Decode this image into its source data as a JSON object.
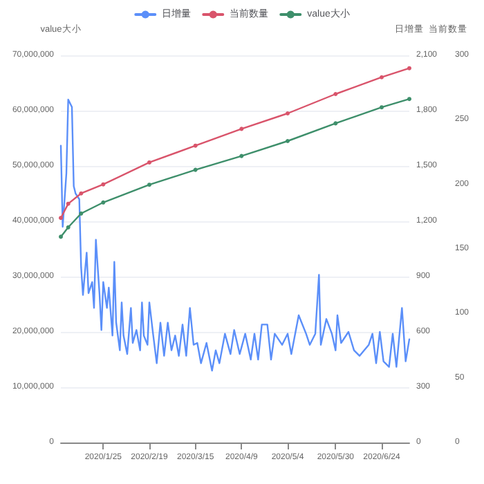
{
  "chart_data": {
    "type": "line",
    "ylabel": "value大小",
    "y2label": "日增量",
    "y3label": "当前数量",
    "xlim": [
      "2020-01-02",
      "2020-07-09"
    ],
    "xticks": [
      {
        "value": "2020-01-25",
        "label": "2020/1/25"
      },
      {
        "value": "2020-02-19",
        "label": "2020/2/19"
      },
      {
        "value": "2020-03-15",
        "label": "2020/3/15"
      },
      {
        "value": "2020-04-09",
        "label": "2020/4/9"
      },
      {
        "value": "2020-05-04",
        "label": "2020/5/4"
      },
      {
        "value": "2020-05-30",
        "label": "2020/5/30"
      },
      {
        "value": "2020-06-24",
        "label": "2020/6/24"
      }
    ],
    "ylim": [
      0,
      70000000
    ],
    "yticks": [
      0,
      {
        "value": 10000000,
        "label": "10,000,000"
      },
      {
        "value": 20000000,
        "label": "20,000,000"
      },
      {
        "value": 30000000,
        "label": "30,000,000"
      },
      {
        "value": 40000000,
        "label": "40,000,000"
      },
      {
        "value": 50000000,
        "label": "50,000,000"
      },
      {
        "value": 60000000,
        "label": "60,000,000"
      },
      {
        "value": 70000000,
        "label": "70,000,000"
      }
    ],
    "y2lim": [
      0,
      2100
    ],
    "y2ticks": [
      0,
      300,
      600,
      900,
      {
        "value": 1200,
        "label": "1,200"
      },
      {
        "value": 1500,
        "label": "1,500"
      },
      {
        "value": 1800,
        "label": "1,800"
      },
      {
        "value": 2100,
        "label": "2,100"
      }
    ],
    "y3lim": [
      0,
      300
    ],
    "y3ticks": [
      0,
      50,
      100,
      150,
      200,
      250,
      300
    ],
    "grid": "y",
    "legend": "top",
    "marker": "circle",
    "line_style": "solid",
    "series": [
      {
        "name": "日增量",
        "color": "#5b8ff9",
        "axis": "y2",
        "marker": "none",
        "x": [
          "2020-01-02",
          "2020-01-03",
          "2020-01-05",
          "2020-01-06",
          "2020-01-08",
          "2020-01-09",
          "2020-01-10",
          "2020-01-12",
          "2020-01-13",
          "2020-01-14",
          "2020-01-16",
          "2020-01-17",
          "2020-01-19",
          "2020-01-20",
          "2020-01-21",
          "2020-01-23",
          "2020-01-24",
          "2020-01-25",
          "2020-01-27",
          "2020-01-28",
          "2020-01-30",
          "2020-01-31",
          "2020-02-01",
          "2020-02-03",
          "2020-02-04",
          "2020-02-05",
          "2020-02-07",
          "2020-02-09",
          "2020-02-10",
          "2020-02-12",
          "2020-02-14",
          "2020-02-15",
          "2020-02-16",
          "2020-02-18",
          "2020-02-19",
          "2020-02-21",
          "2020-02-23",
          "2020-02-25",
          "2020-02-27",
          "2020-02-29",
          "2020-03-02",
          "2020-03-04",
          "2020-03-06",
          "2020-03-08",
          "2020-03-10",
          "2020-03-12",
          "2020-03-14",
          "2020-03-16",
          "2020-03-18",
          "2020-03-21",
          "2020-03-24",
          "2020-03-26",
          "2020-03-28",
          "2020-03-31",
          "2020-04-03",
          "2020-04-05",
          "2020-04-08",
          "2020-04-11",
          "2020-04-14",
          "2020-04-16",
          "2020-04-18",
          "2020-04-20",
          "2020-04-23",
          "2020-04-25",
          "2020-04-27",
          "2020-05-01",
          "2020-05-04",
          "2020-05-06",
          "2020-05-10",
          "2020-05-14",
          "2020-05-16",
          "2020-05-19",
          "2020-05-21",
          "2020-05-22",
          "2020-05-25",
          "2020-05-28",
          "2020-05-30",
          "2020-05-31",
          "2020-06-02",
          "2020-06-06",
          "2020-06-09",
          "2020-06-12",
          "2020-06-17",
          "2020-06-19",
          "2020-06-21",
          "2020-06-23",
          "2020-06-25",
          "2020-06-28",
          "2020-06-30",
          "2020-07-02",
          "2020-07-05",
          "2020-07-07",
          "2020-07-09"
        ],
        "values": [
          1610,
          1170,
          1460,
          1860,
          1820,
          1390,
          1350,
          1320,
          950,
          800,
          1030,
          810,
          870,
          730,
          1100,
          800,
          610,
          870,
          730,
          840,
          580,
          980,
          650,
          500,
          760,
          580,
          480,
          730,
          540,
          610,
          500,
          760,
          580,
          530,
          760,
          590,
          430,
          650,
          470,
          650,
          500,
          580,
          470,
          640,
          470,
          730,
          530,
          540,
          430,
          540,
          390,
          500,
          430,
          590,
          480,
          610,
          480,
          590,
          450,
          590,
          450,
          640,
          640,
          450,
          590,
          530,
          590,
          480,
          690,
          590,
          530,
          590,
          910,
          530,
          670,
          590,
          500,
          690,
          540,
          600,
          500,
          470,
          530,
          590,
          430,
          600,
          440,
          410,
          590,
          410,
          730,
          440,
          560
        ]
      },
      {
        "name": "当前数量",
        "color": "#d9546b",
        "axis": "y3",
        "x": [
          "2020-01-02",
          "2020-01-06",
          "2020-01-13",
          "2020-01-25",
          "2020-02-19",
          "2020-03-15",
          "2020-04-09",
          "2020-05-04",
          "2020-05-30",
          "2020-06-24",
          "2020-07-09"
        ],
        "values": [
          174,
          185,
          193,
          200,
          217,
          230,
          243,
          255,
          270,
          283,
          290
        ]
      },
      {
        "name": "value大小",
        "color": "#3e8f6b",
        "x": [
          "2020-01-02",
          "2020-01-06",
          "2020-01-13",
          "2020-01-25",
          "2020-02-19",
          "2020-03-15",
          "2020-04-09",
          "2020-05-04",
          "2020-05-30",
          "2020-06-24",
          "2020-07-09"
        ],
        "values": [
          37200000,
          38900000,
          41400000,
          43400000,
          46600000,
          49300000,
          51800000,
          54500000,
          57700000,
          60600000,
          62100000
        ]
      }
    ]
  }
}
